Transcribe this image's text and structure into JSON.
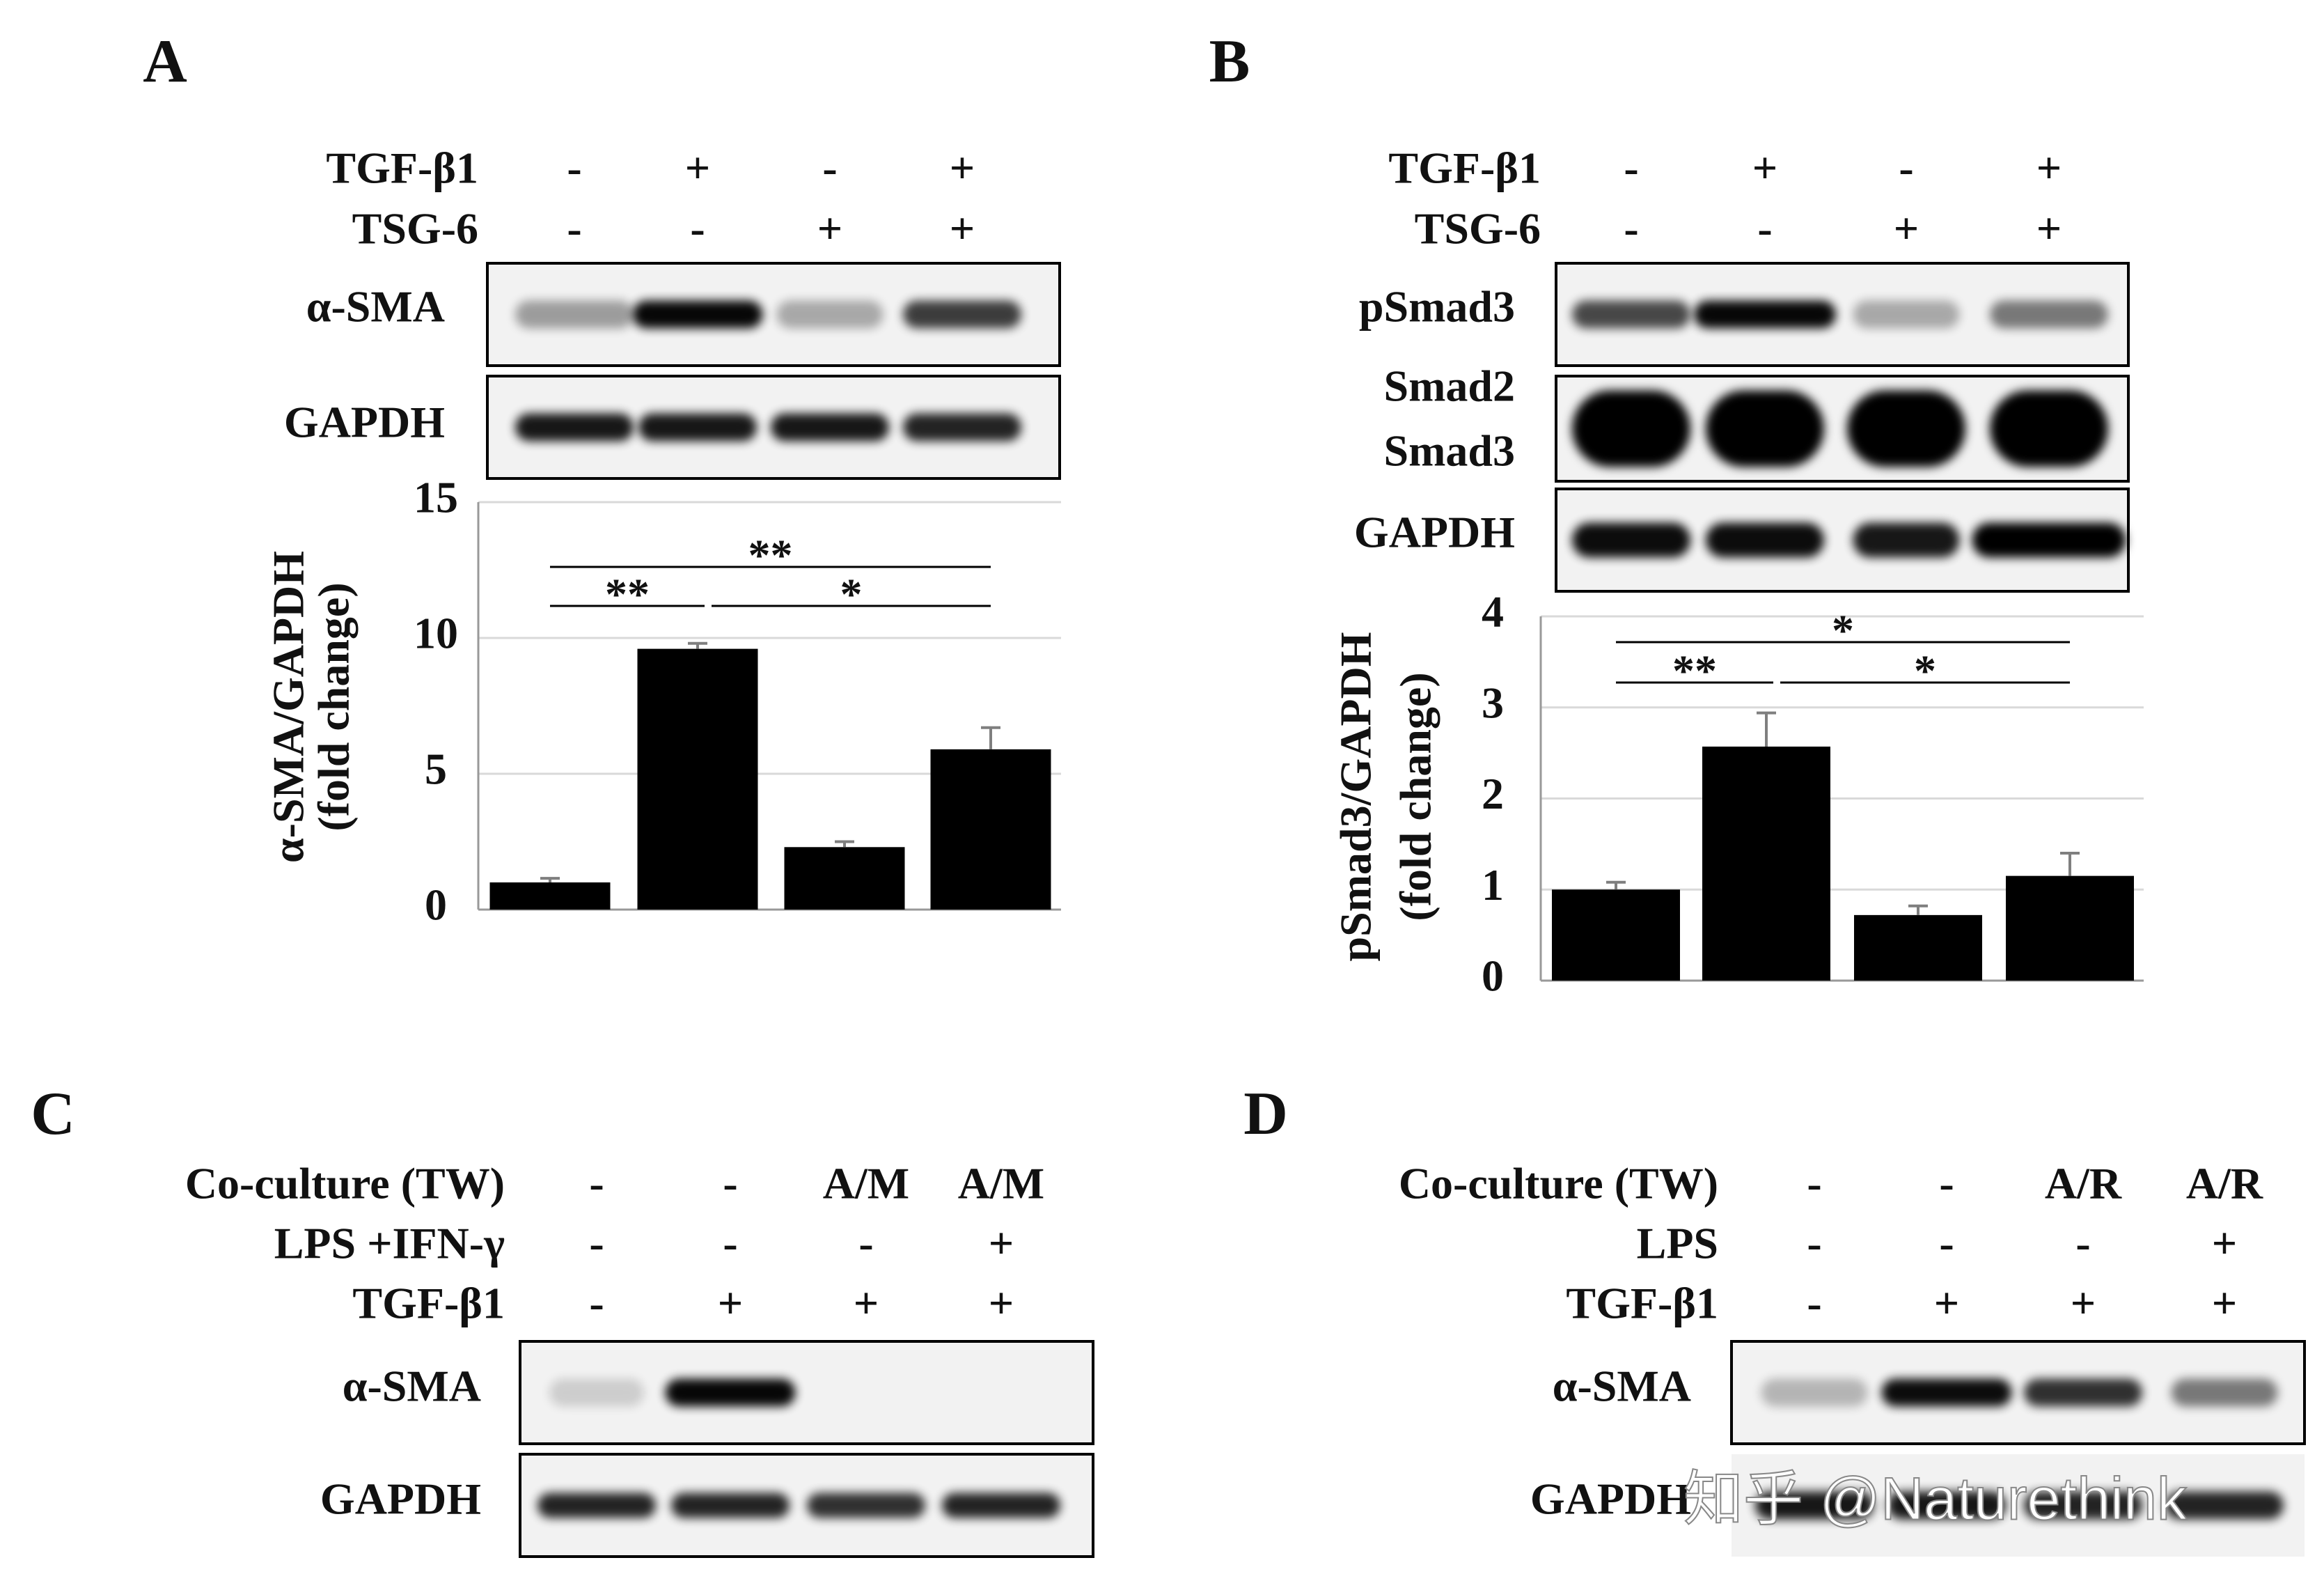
{
  "panels": [
    {
      "letter": "A",
      "conditions": [
        {
          "label": "TGF-β1",
          "values": [
            "-",
            "+",
            "-",
            "+"
          ]
        },
        {
          "label": "TSG-6",
          "values": [
            "-",
            "-",
            "+",
            "+"
          ]
        }
      ],
      "blots": [
        {
          "labels": [
            "α-SMA"
          ]
        },
        {
          "labels": [
            "GAPDH"
          ]
        }
      ]
    },
    {
      "letter": "B",
      "conditions": [
        {
          "label": "TGF-β1",
          "values": [
            "-",
            "+",
            "-",
            "+"
          ]
        },
        {
          "label": "TSG-6",
          "values": [
            "-",
            "-",
            "+",
            "+"
          ]
        }
      ],
      "blots": [
        {
          "labels": [
            "pSmad3"
          ]
        },
        {
          "labels": [
            "Smad2",
            "Smad3"
          ]
        },
        {
          "labels": [
            "GAPDH"
          ]
        }
      ]
    },
    {
      "letter": "C",
      "conditions": [
        {
          "label": "Co-culture (TW)",
          "values": [
            "-",
            "-",
            "A/M",
            "A/M"
          ]
        },
        {
          "label": "LPS +IFN-γ",
          "values": [
            "-",
            "-",
            "-",
            "+"
          ]
        },
        {
          "label": "TGF-β1",
          "values": [
            "-",
            "+",
            "+",
            "+"
          ]
        }
      ],
      "blots": [
        {
          "labels": [
            "α-SMA"
          ]
        },
        {
          "labels": [
            "GAPDH"
          ]
        }
      ]
    },
    {
      "letter": "D",
      "conditions": [
        {
          "label": "Co-culture (TW)",
          "values": [
            "-",
            "-",
            "A/R",
            "A/R"
          ]
        },
        {
          "label": "LPS",
          "values": [
            "-",
            "-",
            "-",
            "+"
          ]
        },
        {
          "label": "TGF-β1",
          "values": [
            "-",
            "+",
            "+",
            "+"
          ]
        }
      ],
      "blots": [
        {
          "labels": [
            "α-SMA"
          ]
        },
        {
          "labels": [
            "GAPDH"
          ]
        }
      ]
    }
  ],
  "chart_data": [
    {
      "type": "bar",
      "ylabel": [
        "α-SMA/GAPDH",
        "(fold change)"
      ],
      "values": [
        1.0,
        9.6,
        2.3,
        5.9
      ],
      "errors": [
        0.15,
        0.2,
        0.2,
        0.8
      ],
      "color": "#000000",
      "ylim": [
        0,
        15
      ],
      "yticks": [
        0,
        5,
        10,
        15
      ],
      "grid": true,
      "annotations": [
        "**",
        "**",
        "*"
      ]
    },
    {
      "type": "bar",
      "ylabel": [
        "pSmad3/GAPDH",
        "(fold change)"
      ],
      "values": [
        1.0,
        2.57,
        0.72,
        1.15
      ],
      "errors": [
        0.08,
        0.37,
        0.1,
        0.25
      ],
      "color": "#000000",
      "ylim": [
        0,
        4
      ],
      "yticks": [
        0,
        1,
        2,
        3,
        4
      ],
      "grid": true,
      "annotations": [
        "*",
        "**",
        "*"
      ]
    }
  ],
  "watermark": "知乎 @Naturethink"
}
